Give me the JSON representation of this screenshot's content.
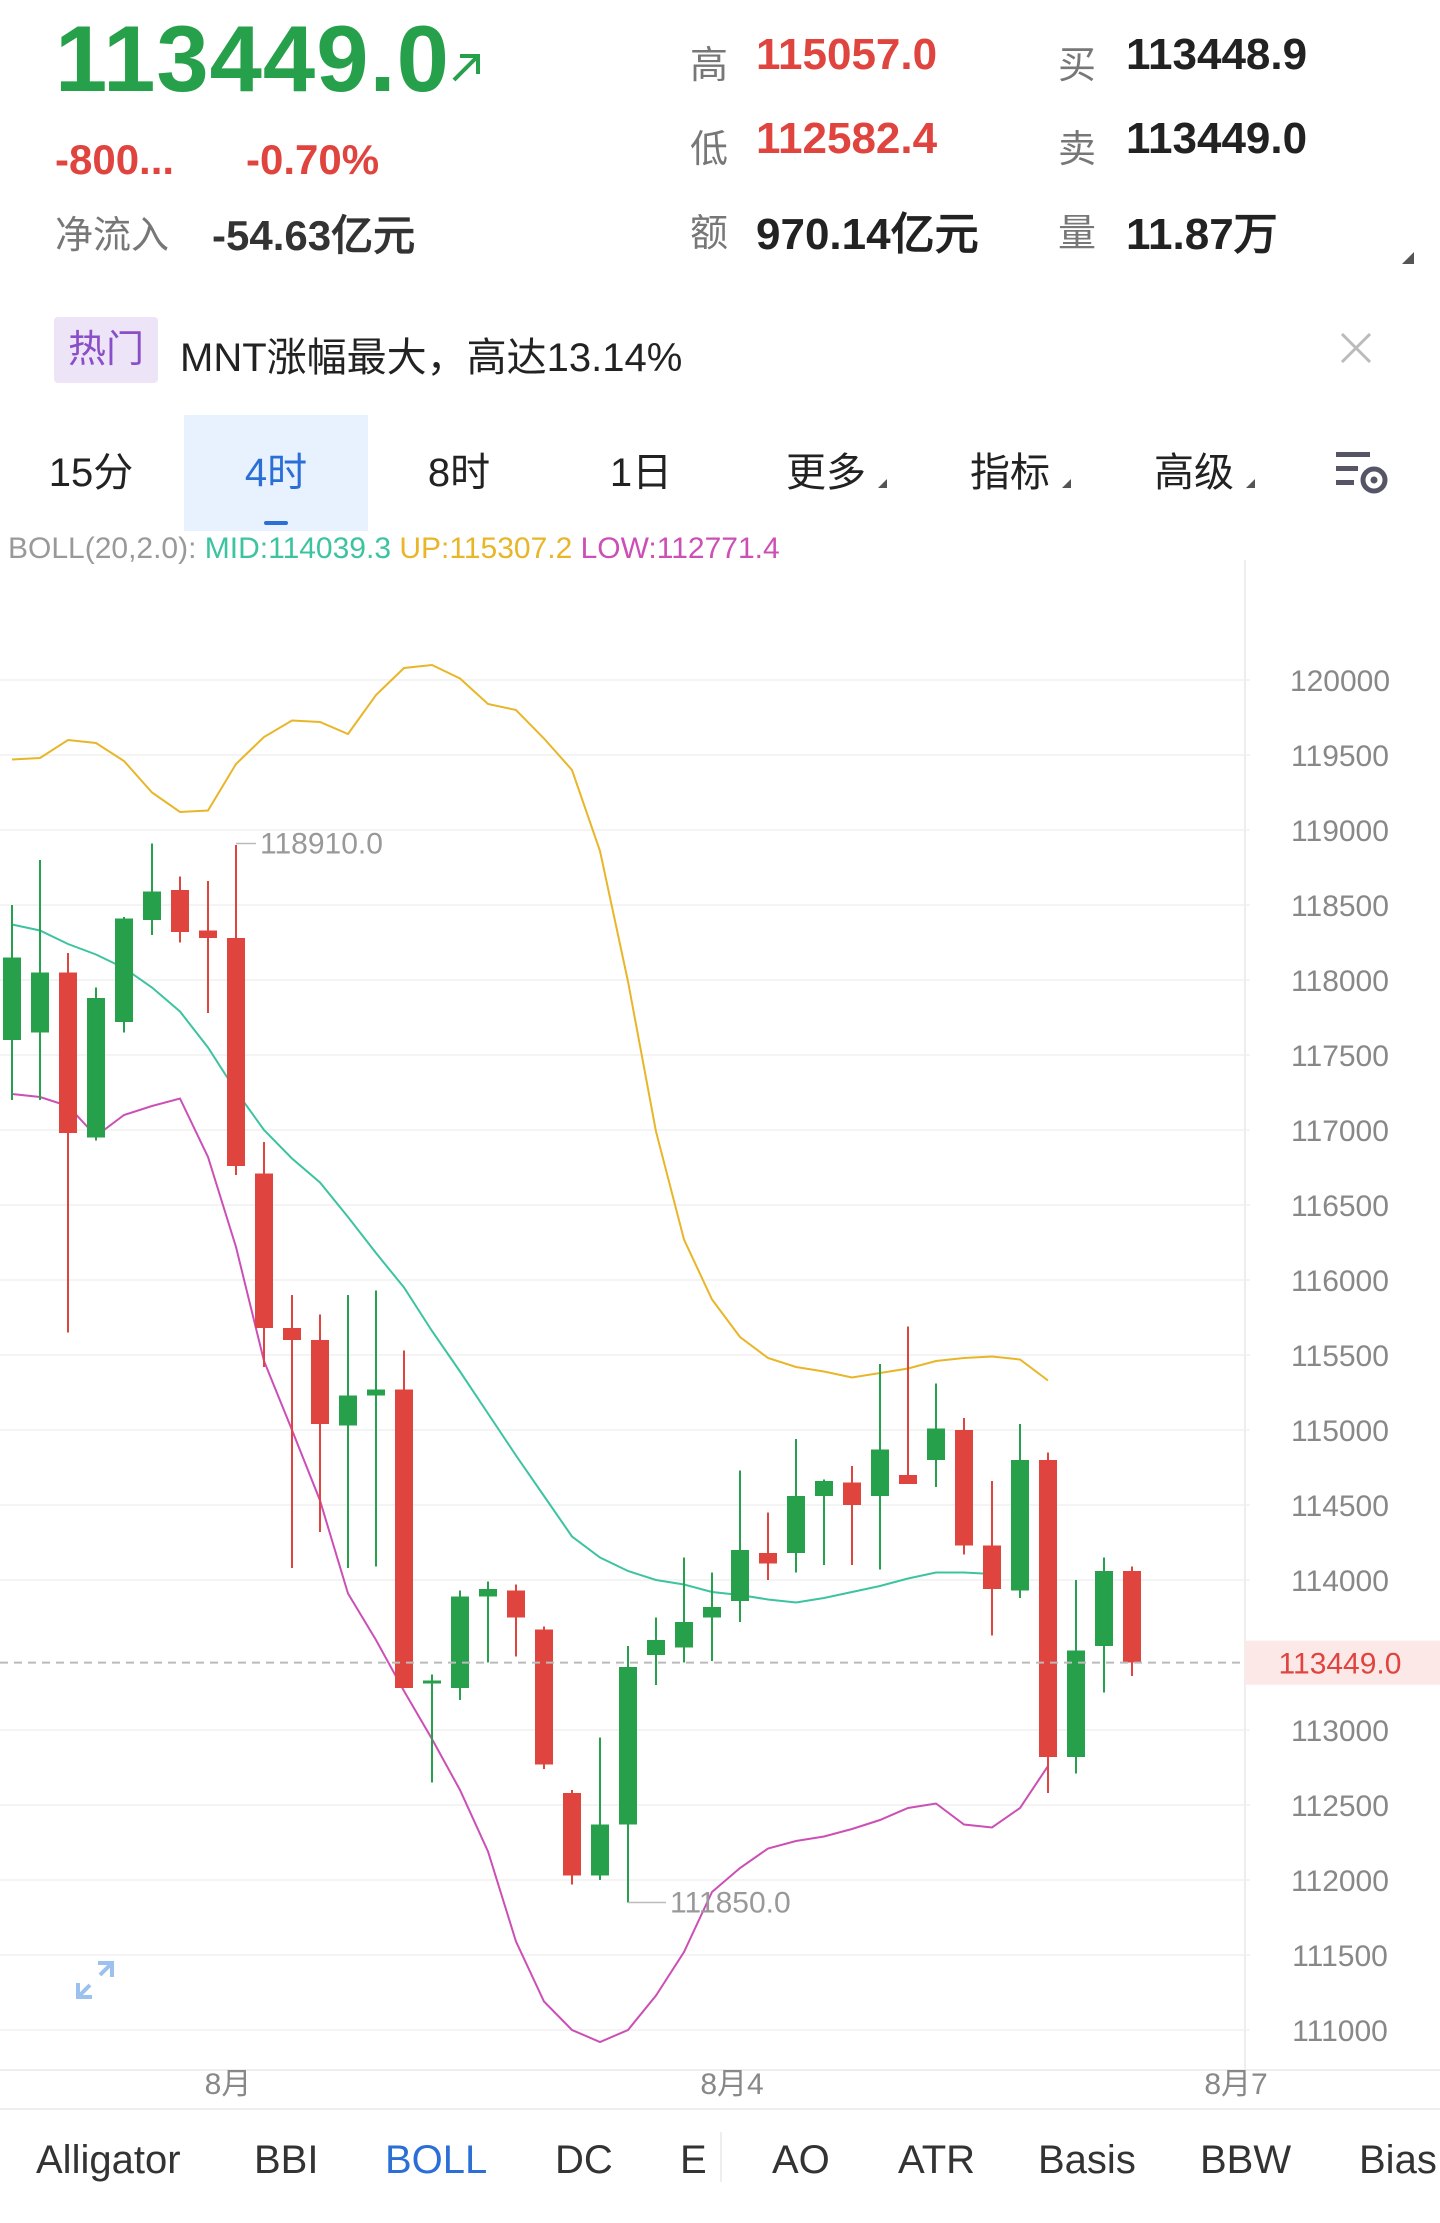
{
  "header": {
    "price": "113449.0",
    "change": "-800...",
    "change_pct": "-0.70%",
    "net_inflow_label": "净流入",
    "net_inflow_value": "-54.63亿元",
    "stats": {
      "high_label": "高",
      "high_value": "115057.0",
      "low_label": "低",
      "low_value": "112582.4",
      "amount_label": "额",
      "amount_value": "970.14亿元",
      "buy_label": "买",
      "buy_value": "113448.9",
      "sell_label": "卖",
      "sell_value": "113449.0",
      "volume_label": "量",
      "volume_value": "11.87万"
    }
  },
  "hot": {
    "tag": "热门",
    "text": "MNT涨幅最大，高达13.14%"
  },
  "tabs": [
    "15分",
    "4时",
    "8时",
    "1日",
    "更多",
    "指标",
    "高级"
  ],
  "active_tab": "4时",
  "boll": {
    "prefix": "BOLL(20,2.0):",
    "mid": "MID:114039.3",
    "up": "UP:115307.2",
    "low": "LOW:112771.4"
  },
  "colors": {
    "up": "#27a04b",
    "down": "#e0443e",
    "mid": "#3cc3a0",
    "upper": "#e8b628",
    "lower": "#cc4fb5",
    "accent": "#2b6fd6"
  },
  "chart_data": {
    "type": "candlestick",
    "y_ticks": [
      "120000",
      "119500",
      "119000",
      "118500",
      "118000",
      "117500",
      "117000",
      "116500",
      "116000",
      "115500",
      "115000",
      "114500",
      "114000",
      "113000",
      "112500",
      "112000",
      "111500",
      "111000"
    ],
    "ylim": [
      110800,
      120300
    ],
    "x_labels": [
      "8月",
      "8月4",
      "8月7"
    ],
    "current_price": "113449.0",
    "annotations": {
      "high": "118910.0",
      "low": "111850.0"
    },
    "candles": [
      {
        "o": 117600,
        "c": 118150,
        "h": 118500,
        "l": 117200
      },
      {
        "o": 117650,
        "c": 118050,
        "h": 118800,
        "l": 117200
      },
      {
        "o": 118050,
        "c": 116980,
        "h": 118180,
        "l": 115650
      },
      {
        "o": 116950,
        "c": 117880,
        "h": 117950,
        "l": 116930
      },
      {
        "o": 117720,
        "c": 118410,
        "h": 118420,
        "l": 117650
      },
      {
        "o": 118400,
        "c": 118590,
        "h": 118910,
        "l": 118300
      },
      {
        "o": 118600,
        "c": 118320,
        "h": 118690,
        "l": 118250
      },
      {
        "o": 118330,
        "c": 118280,
        "h": 118660,
        "l": 117780
      },
      {
        "o": 118280,
        "c": 116760,
        "h": 118900,
        "l": 116700
      },
      {
        "o": 116710,
        "c": 115680,
        "h": 116920,
        "l": 115420
      },
      {
        "o": 115680,
        "c": 115600,
        "h": 115900,
        "l": 114080
      },
      {
        "o": 115600,
        "c": 115040,
        "h": 115770,
        "l": 114320
      },
      {
        "o": 115030,
        "c": 115230,
        "h": 115900,
        "l": 114080
      },
      {
        "o": 115230,
        "c": 115270,
        "h": 115930,
        "l": 114090
      },
      {
        "o": 115270,
        "c": 113280,
        "h": 115530,
        "l": 113280
      },
      {
        "o": 113320,
        "c": 113330,
        "h": 113370,
        "l": 112650
      },
      {
        "o": 113280,
        "c": 113890,
        "h": 113930,
        "l": 113200
      },
      {
        "o": 113890,
        "c": 113940,
        "h": 113990,
        "l": 113450
      },
      {
        "o": 113930,
        "c": 113750,
        "h": 113970,
        "l": 113490
      },
      {
        "o": 113670,
        "c": 112770,
        "h": 113690,
        "l": 112740
      },
      {
        "o": 112580,
        "c": 112030,
        "h": 112600,
        "l": 111970
      },
      {
        "o": 112030,
        "c": 112370,
        "h": 112950,
        "l": 112000
      },
      {
        "o": 112370,
        "c": 113420,
        "h": 113560,
        "l": 111850
      },
      {
        "o": 113500,
        "c": 113600,
        "h": 113750,
        "l": 113300
      },
      {
        "o": 113550,
        "c": 113720,
        "h": 114150,
        "l": 113450
      },
      {
        "o": 113750,
        "c": 113820,
        "h": 114050,
        "l": 113460
      },
      {
        "o": 113860,
        "c": 114200,
        "h": 114730,
        "l": 113720
      },
      {
        "o": 114180,
        "c": 114110,
        "h": 114450,
        "l": 114000
      },
      {
        "o": 114180,
        "c": 114560,
        "h": 114940,
        "l": 114050
      },
      {
        "o": 114560,
        "c": 114660,
        "h": 114670,
        "l": 114100
      },
      {
        "o": 114650,
        "c": 114500,
        "h": 114760,
        "l": 114100
      },
      {
        "o": 114560,
        "c": 114870,
        "h": 115440,
        "l": 114070
      },
      {
        "o": 114700,
        "c": 114640,
        "h": 115690,
        "l": 114660
      },
      {
        "o": 114800,
        "c": 115010,
        "h": 115310,
        "l": 114620
      },
      {
        "o": 115000,
        "c": 114230,
        "h": 115080,
        "l": 114170
      },
      {
        "o": 114230,
        "c": 113940,
        "h": 114660,
        "l": 113630
      },
      {
        "o": 113930,
        "c": 114800,
        "h": 115040,
        "l": 113880
      },
      {
        "o": 114800,
        "c": 112820,
        "h": 114850,
        "l": 112580
      },
      {
        "o": 112820,
        "c": 113530,
        "h": 114000,
        "l": 112710
      },
      {
        "o": 113560,
        "c": 114060,
        "h": 114150,
        "l": 113250
      },
      {
        "o": 114060,
        "c": 113450,
        "h": 114090,
        "l": 113360
      }
    ],
    "upper_band": [
      119470,
      119480,
      119600,
      119580,
      119460,
      119250,
      119120,
      119130,
      119440,
      119620,
      119730,
      119720,
      119640,
      119900,
      120080,
      120100,
      120010,
      119840,
      119800,
      119610,
      119400,
      118860,
      117990,
      116990,
      116270,
      115870,
      115620,
      115480,
      115420,
      115390,
      115350,
      115380,
      115410,
      115460,
      115480,
      115490,
      115470,
      115330
    ],
    "mid_band": [
      118370,
      118330,
      118240,
      118170,
      118080,
      117950,
      117790,
      117550,
      117260,
      117000,
      116810,
      116650,
      116420,
      116180,
      115950,
      115660,
      115390,
      115110,
      114830,
      114560,
      114290,
      114150,
      114060,
      114000,
      113970,
      113920,
      113900,
      113870,
      113850,
      113880,
      113920,
      113960,
      114010,
      114050,
      114050,
      114040
    ],
    "lower_band": [
      117240,
      117220,
      117160,
      116960,
      117100,
      117160,
      117210,
      116820,
      116220,
      115460,
      115000,
      114530,
      113910,
      113600,
      113260,
      112940,
      112600,
      112190,
      111590,
      111190,
      111000,
      110920,
      111000,
      111230,
      111520,
      111920,
      112080,
      112210,
      112260,
      112290,
      112340,
      112400,
      112480,
      112510,
      112370,
      112350,
      112480,
      112760
    ]
  },
  "indicators": [
    "Alligator",
    "BBI",
    "BOLL",
    "DC",
    "E",
    "AO",
    "ATR",
    "Basis",
    "BBW",
    "Bias"
  ],
  "active_indicator": "BOLL"
}
